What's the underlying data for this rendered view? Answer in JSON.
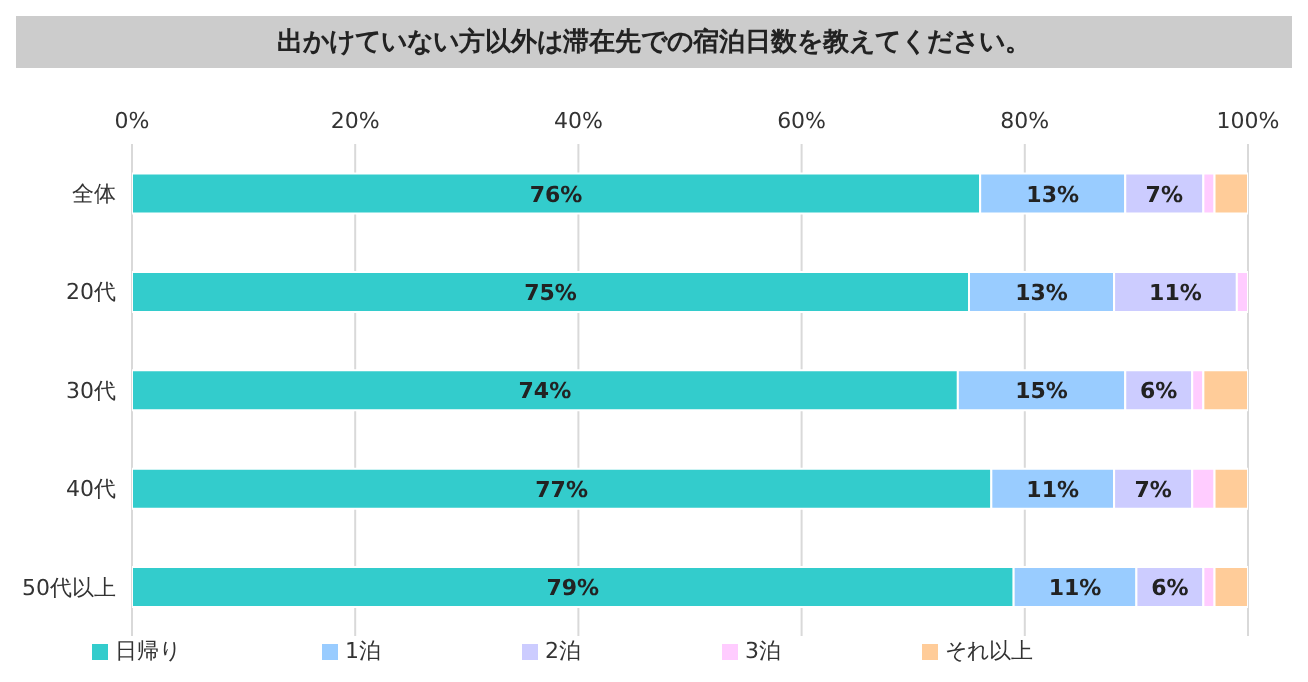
{
  "chart_data": {
    "type": "bar",
    "orientation": "horizontal",
    "stacked": true,
    "title": "出かけていない方以外は滞在先での宿泊日数を教えてください。",
    "categories": [
      "全体",
      "20代",
      "30代",
      "40代",
      "50代以上"
    ],
    "series": [
      {
        "name": "日帰り",
        "color": "#33cccc",
        "values": [
          76,
          75,
          74,
          77,
          79
        ],
        "value_labels": [
          "76%",
          "75%",
          "74%",
          "77%",
          "79%"
        ]
      },
      {
        "name": "1泊",
        "color": "#99ccff",
        "values": [
          13,
          13,
          15,
          11,
          11
        ],
        "value_labels": [
          "13%",
          "13%",
          "15%",
          "11%",
          "11%"
        ]
      },
      {
        "name": "2泊",
        "color": "#ccccff",
        "values": [
          7,
          11,
          6,
          7,
          6
        ],
        "value_labels": [
          "7%",
          "11%",
          "6%",
          "7%",
          "6%"
        ]
      },
      {
        "name": "3泊",
        "color": "#ffccff",
        "values": [
          1,
          1,
          1,
          2,
          1
        ]
      },
      {
        "name": "それ以上",
        "color": "#ffcc99",
        "values": [
          3,
          0,
          4,
          3,
          3
        ]
      }
    ],
    "xlim": [
      0,
      100
    ],
    "xticks": [
      {
        "value": 0,
        "label": "0%"
      },
      {
        "value": 20,
        "label": "20%"
      },
      {
        "value": 40,
        "label": "40%"
      },
      {
        "value": 60,
        "label": "60%"
      },
      {
        "value": 80,
        "label": "80%"
      },
      {
        "value": 100,
        "label": "100%"
      }
    ],
    "grid": "x",
    "legend": "bottom"
  }
}
